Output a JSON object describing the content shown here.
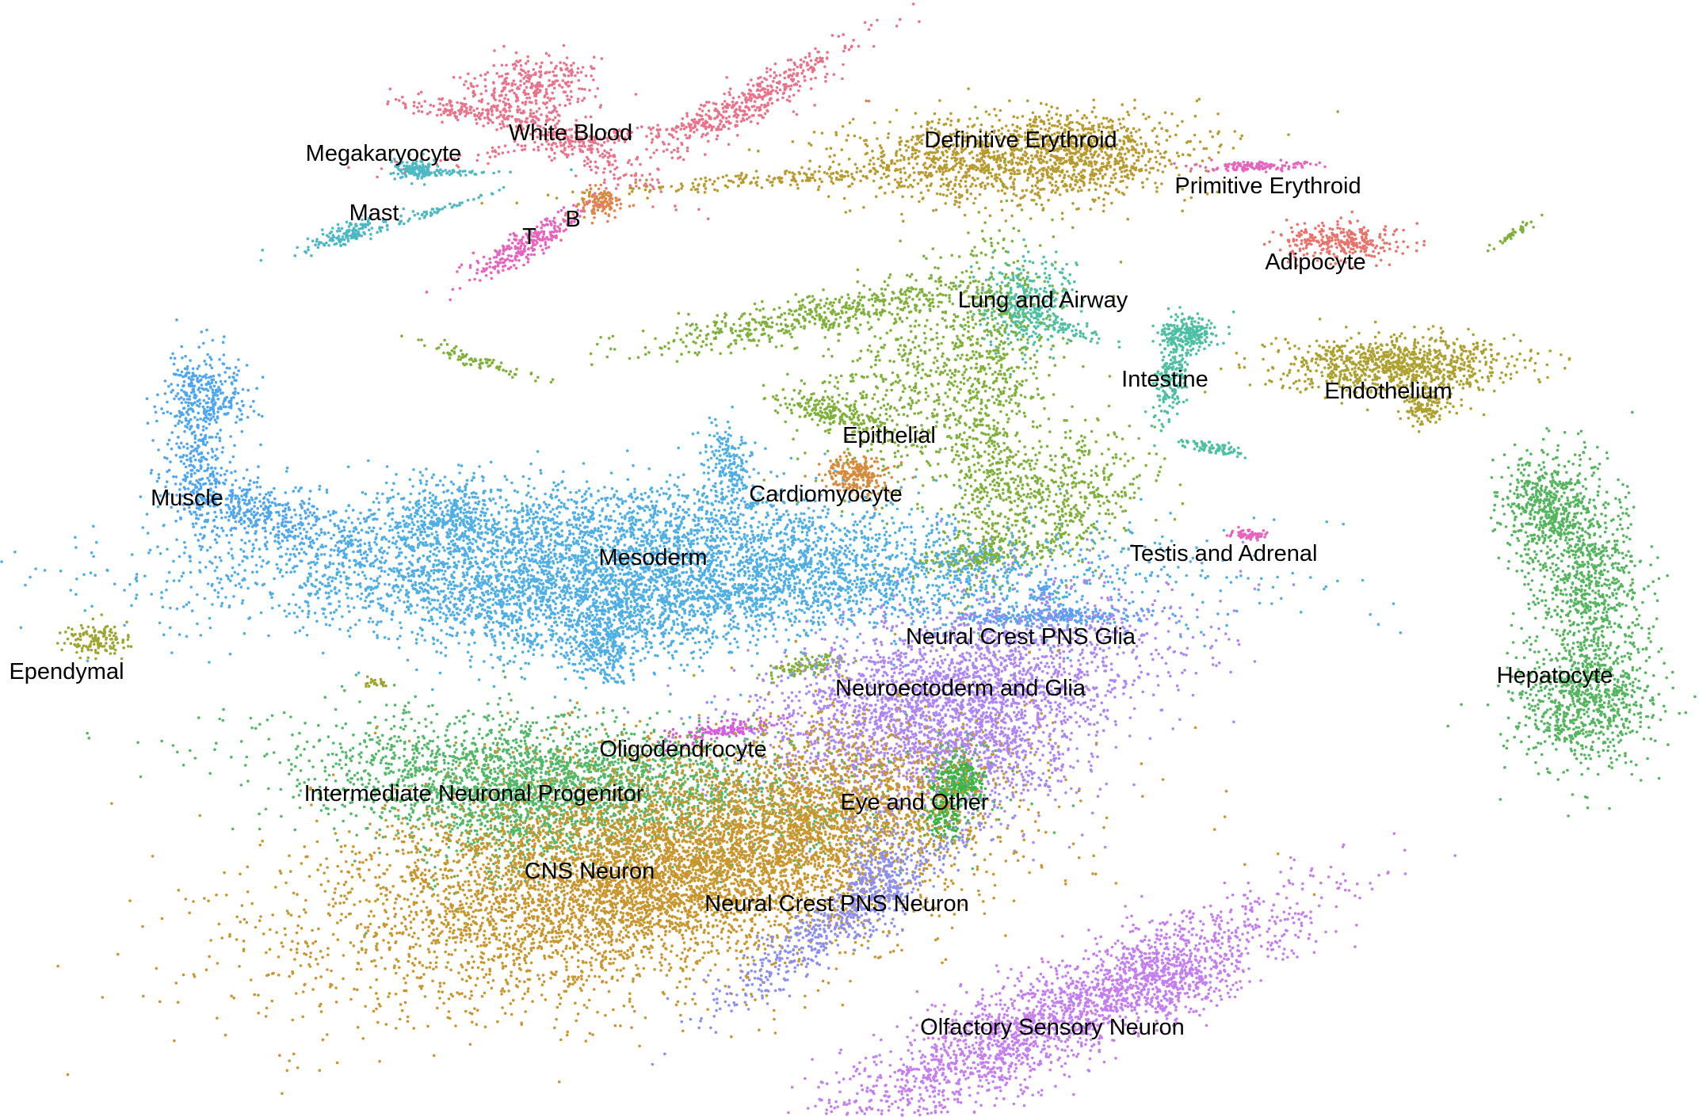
{
  "chart_data": {
    "type": "scatter",
    "title": "",
    "xlabel": "",
    "ylabel": "",
    "axes_visible": false,
    "grid": false,
    "legend": "none",
    "clusters": [
      {
        "label": "White Blood",
        "color": "#E8738A",
        "cx": 0.34,
        "cy": 0.12
      },
      {
        "label": "Megakaryocyte",
        "color": "#4DB8C4",
        "cx": 0.25,
        "cy": 0.15
      },
      {
        "label": "Mast",
        "color": "#4DB8C4",
        "cx": 0.21,
        "cy": 0.2
      },
      {
        "label": "B",
        "color": "#E0844A",
        "cx": 0.35,
        "cy": 0.18
      },
      {
        "label": "T",
        "color": "#E565BE",
        "cx": 0.31,
        "cy": 0.21
      },
      {
        "label": "Definitive Erythroid",
        "color": "#B89A2E",
        "cx": 0.6,
        "cy": 0.14
      },
      {
        "label": "Primitive Erythroid",
        "color": "#E565BE",
        "cx": 0.74,
        "cy": 0.15
      },
      {
        "label": "Adipocyte",
        "color": "#E8736A",
        "cx": 0.78,
        "cy": 0.22
      },
      {
        "label": "Lung and Airway",
        "color": "#4DBFA3",
        "cx": 0.6,
        "cy": 0.28
      },
      {
        "label": "Intestine",
        "color": "#4DBFA3",
        "cx": 0.69,
        "cy": 0.33
      },
      {
        "label": "Endothelium",
        "color": "#ADA02E",
        "cx": 0.83,
        "cy": 0.33
      },
      {
        "label": "Epithelial",
        "color": "#7FB13A",
        "cx": 0.51,
        "cy": 0.35
      },
      {
        "label": "Cardiomyocyte",
        "color": "#D9893A",
        "cx": 0.5,
        "cy": 0.42
      },
      {
        "label": "Muscle",
        "color": "#4FA6EE",
        "cx": 0.14,
        "cy": 0.43
      },
      {
        "label": "Mesoderm",
        "color": "#4FAFE5",
        "cx": 0.38,
        "cy": 0.51
      },
      {
        "label": "Testis and Adrenal",
        "color": "#E565BE",
        "cx": 0.73,
        "cy": 0.48
      },
      {
        "label": "Hepatocyte",
        "color": "#55B55E",
        "cx": 0.93,
        "cy": 0.55
      },
      {
        "label": "Ependymal",
        "color": "#9DA52E",
        "cx": 0.05,
        "cy": 0.58
      },
      {
        "label": "Neural Crest PNS Glia",
        "color": "#5AA0F0",
        "cx": 0.58,
        "cy": 0.55
      },
      {
        "label": "Neuroectoderm and Glia",
        "color": "#AE86F3",
        "cx": 0.56,
        "cy": 0.62
      },
      {
        "label": "Oligodendrocyte",
        "color": "#D45ED9",
        "cx": 0.42,
        "cy": 0.66
      },
      {
        "label": "Intermediate Neuronal Progenitor",
        "color": "#52B868",
        "cx": 0.31,
        "cy": 0.7
      },
      {
        "label": "Eye and Other",
        "color": "#3DB33D",
        "cx": 0.55,
        "cy": 0.71
      },
      {
        "label": "CNS Neuron",
        "color": "#C9962E",
        "cx": 0.38,
        "cy": 0.78
      },
      {
        "label": "Neural Crest PNS Neuron",
        "color": "#8C8EF0",
        "cx": 0.5,
        "cy": 0.81
      },
      {
        "label": "Olfactory Sensory Neuron",
        "color": "#C57EEF",
        "cx": 0.63,
        "cy": 0.91
      }
    ]
  }
}
